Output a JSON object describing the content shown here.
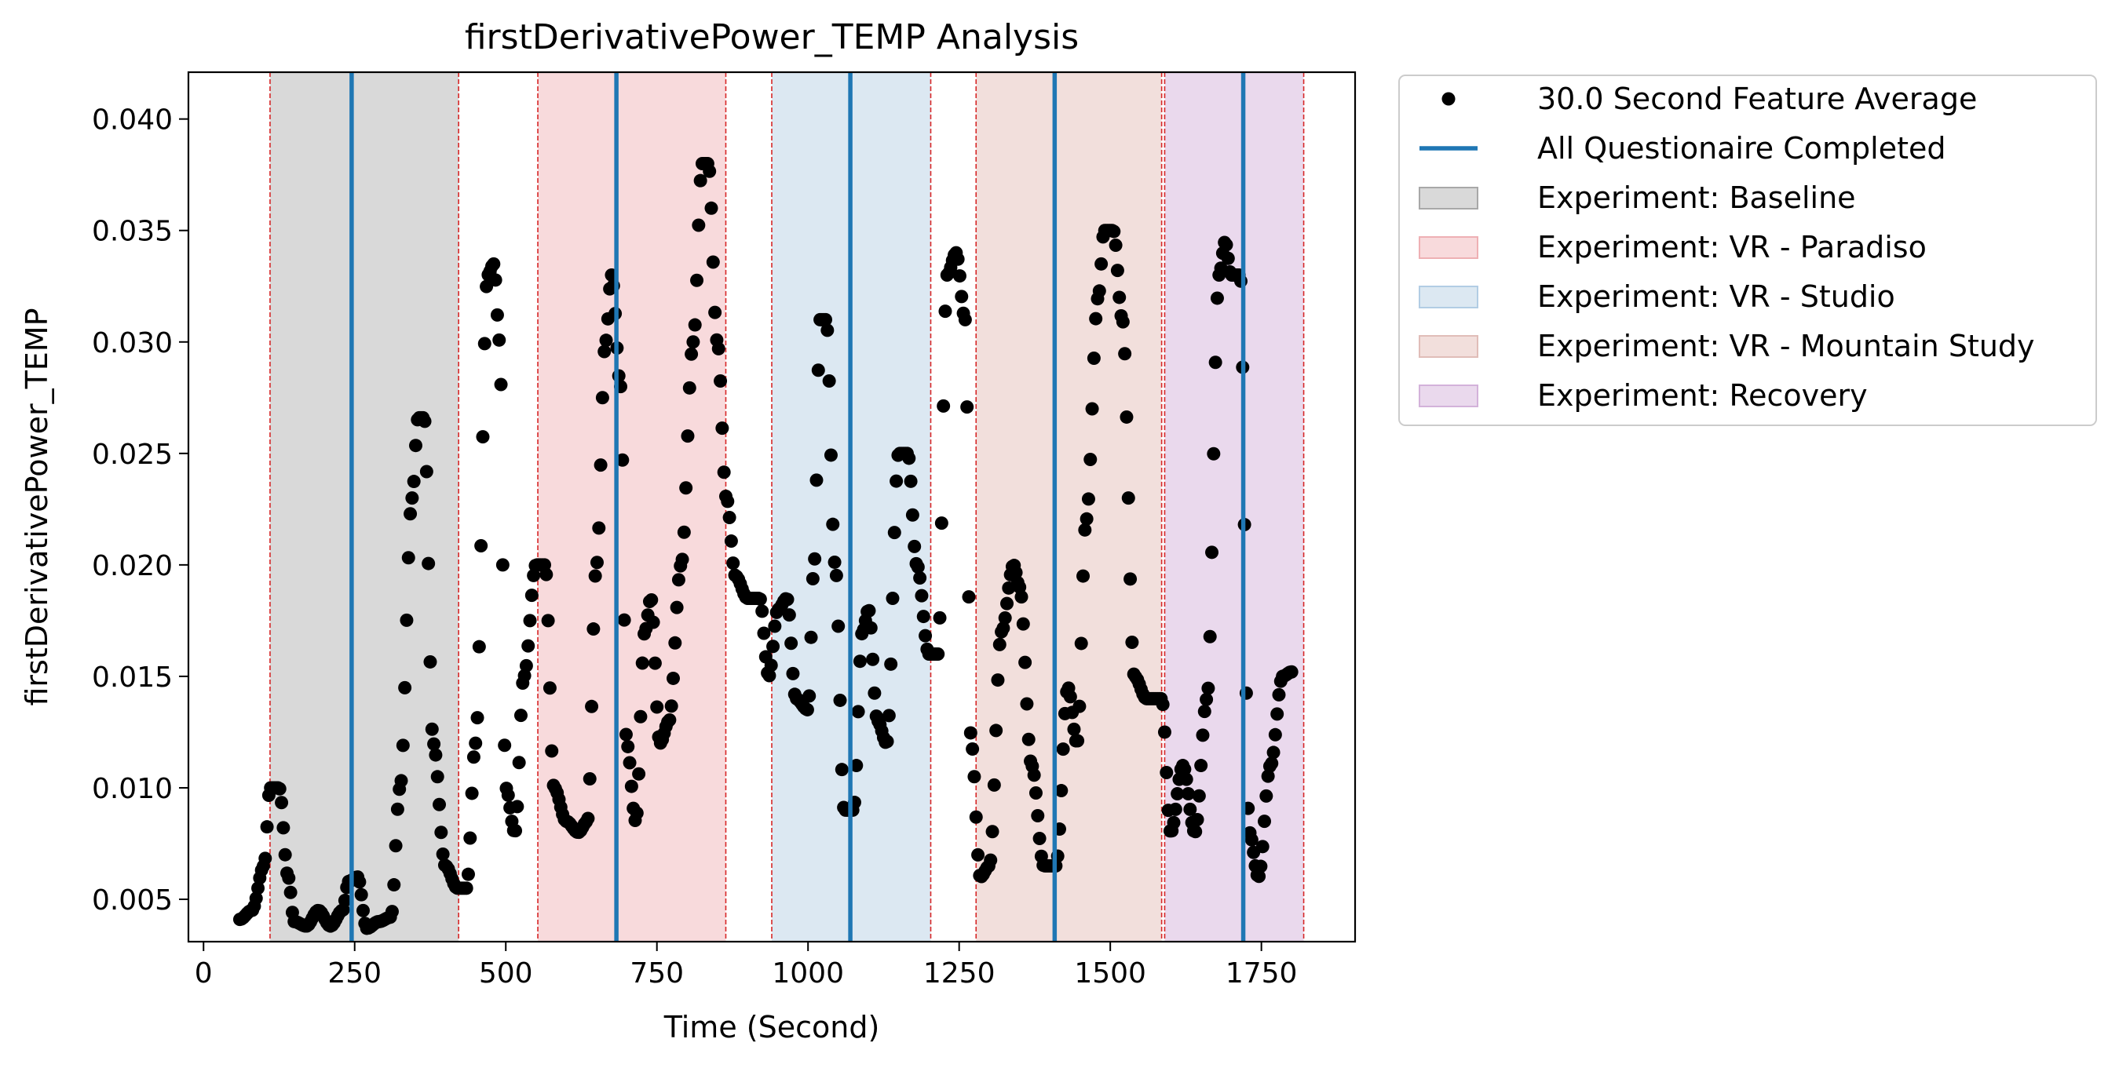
{
  "chart_data": {
    "type": "scatter",
    "title": "firstDerivativePower_TEMP Analysis",
    "xlabel": "Time (Second)",
    "ylabel": "firstDerivativePower_TEMP",
    "xlim": [
      -25,
      1905
    ],
    "ylim": [
      0.0031,
      0.0421
    ],
    "x_ticks": [
      0,
      250,
      500,
      750,
      1000,
      1250,
      1500,
      1750
    ],
    "x_tick_labels": [
      "0",
      "250",
      "500",
      "750",
      "1000",
      "1250",
      "1500",
      "1750"
    ],
    "y_ticks": [
      0.005,
      0.01,
      0.015,
      0.02,
      0.025,
      0.03,
      0.035,
      0.04
    ],
    "y_tick_labels": [
      "0.005",
      "0.010",
      "0.015",
      "0.020",
      "0.025",
      "0.030",
      "0.035",
      "0.040"
    ],
    "grid": false,
    "legend_position": "outside-right-top",
    "series_colors": {
      "points": "#000000",
      "questionnaire": "#1f77b4",
      "boundary": "#d62728"
    },
    "series": [
      {
        "name": "30.0 Second Feature Average",
        "keypoints": [
          [
            60,
            0.0041
          ],
          [
            80,
            0.0045
          ],
          [
            100,
            0.0065
          ],
          [
            110,
            0.01
          ],
          [
            125,
            0.01
          ],
          [
            140,
            0.006
          ],
          [
            150,
            0.004
          ],
          [
            170,
            0.0038
          ],
          [
            190,
            0.0045
          ],
          [
            210,
            0.0038
          ],
          [
            230,
            0.0045
          ],
          [
            240,
            0.0058
          ],
          [
            255,
            0.006
          ],
          [
            270,
            0.0037
          ],
          [
            290,
            0.004
          ],
          [
            310,
            0.0042
          ],
          [
            325,
            0.01
          ],
          [
            345,
            0.023
          ],
          [
            355,
            0.0266
          ],
          [
            365,
            0.0266
          ],
          [
            380,
            0.012
          ],
          [
            400,
            0.0065
          ],
          [
            420,
            0.0055
          ],
          [
            435,
            0.0055
          ],
          [
            450,
            0.012
          ],
          [
            470,
            0.033
          ],
          [
            480,
            0.0335
          ],
          [
            490,
            0.03
          ],
          [
            500,
            0.01
          ],
          [
            515,
            0.008
          ],
          [
            530,
            0.015
          ],
          [
            550,
            0.02
          ],
          [
            565,
            0.02
          ],
          [
            580,
            0.01
          ],
          [
            600,
            0.0085
          ],
          [
            620,
            0.008
          ],
          [
            635,
            0.0085
          ],
          [
            650,
            0.02
          ],
          [
            665,
            0.03
          ],
          [
            675,
            0.033
          ],
          [
            690,
            0.028
          ],
          [
            700,
            0.012
          ],
          [
            715,
            0.0085
          ],
          [
            730,
            0.017
          ],
          [
            740,
            0.0185
          ],
          [
            755,
            0.012
          ],
          [
            770,
            0.013
          ],
          [
            790,
            0.02
          ],
          [
            810,
            0.03
          ],
          [
            825,
            0.038
          ],
          [
            835,
            0.038
          ],
          [
            850,
            0.03
          ],
          [
            865,
            0.023
          ],
          [
            880,
            0.0195
          ],
          [
            900,
            0.0185
          ],
          [
            920,
            0.0185
          ],
          [
            935,
            0.015
          ],
          [
            950,
            0.018
          ],
          [
            965,
            0.0185
          ],
          [
            980,
            0.014
          ],
          [
            1000,
            0.0135
          ],
          [
            1010,
            0.02
          ],
          [
            1020,
            0.031
          ],
          [
            1030,
            0.031
          ],
          [
            1045,
            0.02
          ],
          [
            1060,
            0.009
          ],
          [
            1075,
            0.009
          ],
          [
            1090,
            0.017
          ],
          [
            1100,
            0.018
          ],
          [
            1115,
            0.013
          ],
          [
            1130,
            0.012
          ],
          [
            1150,
            0.025
          ],
          [
            1165,
            0.025
          ],
          [
            1180,
            0.02
          ],
          [
            1200,
            0.016
          ],
          [
            1215,
            0.016
          ],
          [
            1230,
            0.033
          ],
          [
            1245,
            0.034
          ],
          [
            1260,
            0.031
          ],
          [
            1270,
            0.012
          ],
          [
            1285,
            0.006
          ],
          [
            1300,
            0.0065
          ],
          [
            1320,
            0.017
          ],
          [
            1340,
            0.02
          ],
          [
            1350,
            0.019
          ],
          [
            1370,
            0.011
          ],
          [
            1390,
            0.0065
          ],
          [
            1410,
            0.0065
          ],
          [
            1430,
            0.0145
          ],
          [
            1445,
            0.012
          ],
          [
            1460,
            0.022
          ],
          [
            1480,
            0.032
          ],
          [
            1490,
            0.035
          ],
          [
            1505,
            0.035
          ],
          [
            1520,
            0.031
          ],
          [
            1540,
            0.015
          ],
          [
            1560,
            0.014
          ],
          [
            1585,
            0.014
          ],
          [
            1600,
            0.008
          ],
          [
            1620,
            0.011
          ],
          [
            1640,
            0.008
          ],
          [
            1660,
            0.014
          ],
          [
            1680,
            0.033
          ],
          [
            1690,
            0.0345
          ],
          [
            1700,
            0.033
          ],
          [
            1715,
            0.033
          ],
          [
            1730,
            0.008
          ],
          [
            1745,
            0.006
          ],
          [
            1765,
            0.011
          ],
          [
            1785,
            0.015
          ],
          [
            1800,
            0.0152
          ]
        ]
      },
      {
        "name": "All Questionaire Completed",
        "x": [
          245,
          683,
          1070,
          1408,
          1720
        ]
      }
    ],
    "experiments": [
      {
        "name": "Experiment: Baseline",
        "start": 110,
        "end": 422,
        "color": "#d9d9d9"
      },
      {
        "name": "Experiment: VR - Paradiso",
        "start": 553,
        "end": 864,
        "color": "#f8dadc"
      },
      {
        "name": "Experiment: VR - Studio",
        "start": 940,
        "end": 1203,
        "color": "#dce8f2"
      },
      {
        "name": "Experiment: VR - Mountain Study",
        "start": 1278,
        "end": 1585,
        "color": "#f2dfdc"
      },
      {
        "name": "Experiment: Recovery",
        "start": 1590,
        "end": 1820,
        "color": "#ead9ed"
      }
    ]
  },
  "legend": {
    "items": [
      {
        "label": "30.0 Second Feature Average",
        "kind": "marker",
        "color": "#000000"
      },
      {
        "label": "All Questionaire Completed",
        "kind": "line",
        "color": "#1f77b4"
      },
      {
        "label": "Experiment: Baseline",
        "kind": "patch",
        "color": "#d9d9d9",
        "edge": "#a8a8a8"
      },
      {
        "label": "Experiment: VR - Paradiso",
        "kind": "patch",
        "color": "#f8dadc",
        "edge": "#eeb0b4"
      },
      {
        "label": "Experiment: VR - Studio",
        "kind": "patch",
        "color": "#dce8f2",
        "edge": "#b2cde4"
      },
      {
        "label": "Experiment: VR - Mountain Study",
        "kind": "patch",
        "color": "#f2dfdc",
        "edge": "#e0bdb8"
      },
      {
        "label": "Experiment: Recovery",
        "kind": "patch",
        "color": "#ead9ed",
        "edge": "#d3b2da"
      }
    ]
  }
}
